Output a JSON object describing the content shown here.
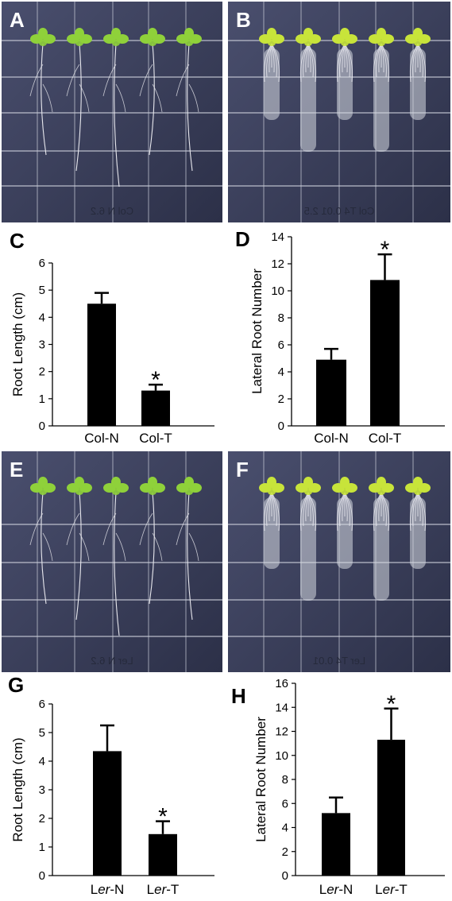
{
  "photos": [
    {
      "letter": "A",
      "plate_text": "Col N  6.2",
      "seedlings": 5
    },
    {
      "letter": "B",
      "plate_text": "Col T4 0.01 2.5",
      "seedlings": 5
    },
    {
      "letter": "E",
      "plate_text": "Ler N  6.2",
      "seedlings": 5
    },
    {
      "letter": "F",
      "plate_text": "Ler T4 0.01",
      "seedlings": 5
    }
  ],
  "colors": {
    "bar": "#000000",
    "axis": "#000000",
    "plate": "#3a3f5c",
    "grid": "#c9ccd8",
    "leaf": "#8fd13a",
    "leaf_yellow": "#c8e43a",
    "root": "#e8e8ee",
    "gel": "#d6d8e0"
  },
  "chart_data": [
    {
      "letter": "C",
      "type": "bar",
      "title": "",
      "xlabel": "",
      "ylabel": "Root  Length (cm)",
      "categories": [
        {
          "name": "Col-N",
          "prefix": "Col",
          "suffix": "-N",
          "italic": false
        },
        {
          "name": "Col-T",
          "prefix": "Col",
          "suffix": "-T",
          "italic": false
        }
      ],
      "values": [
        4.5,
        1.3
      ],
      "errors": [
        0.4,
        0.22
      ],
      "significance": [
        "",
        "*"
      ],
      "ylim": [
        0,
        6
      ],
      "yticks": [
        0,
        1,
        2,
        3,
        4,
        5,
        6
      ],
      "grid": false,
      "legend": "none"
    },
    {
      "letter": "D",
      "type": "bar",
      "title": "",
      "xlabel": "",
      "ylabel": "Lateral Root Number",
      "categories": [
        {
          "name": "Col-N",
          "prefix": "Col",
          "suffix": "-N",
          "italic": false
        },
        {
          "name": "Col-T",
          "prefix": "Col",
          "suffix": "-T",
          "italic": false
        }
      ],
      "values": [
        4.9,
        10.8
      ],
      "errors": [
        0.8,
        1.9
      ],
      "significance": [
        "",
        "*"
      ],
      "ylim": [
        0,
        14
      ],
      "yticks": [
        0,
        2,
        4,
        6,
        8,
        10,
        12,
        14
      ],
      "grid": false,
      "legend": "none"
    },
    {
      "letter": "G",
      "type": "bar",
      "title": "",
      "xlabel": "",
      "ylabel": "Root  Length (cm)",
      "categories": [
        {
          "name": "Ler-N",
          "prefix": "L",
          "italic_part": "er",
          "suffix": "-N",
          "italic": true
        },
        {
          "name": "Ler-T",
          "prefix": "L",
          "italic_part": "er",
          "suffix": "-T",
          "italic": true
        }
      ],
      "values": [
        4.35,
        1.45
      ],
      "errors": [
        0.9,
        0.45
      ],
      "significance": [
        "",
        "*"
      ],
      "ylim": [
        0,
        6
      ],
      "yticks": [
        0,
        1,
        2,
        3,
        4,
        5,
        6
      ],
      "grid": false,
      "legend": "none"
    },
    {
      "letter": "H",
      "type": "bar",
      "title": "",
      "xlabel": "",
      "ylabel": "Lateral Root Number",
      "categories": [
        {
          "name": "Ler-N",
          "prefix": "L",
          "italic_part": "er",
          "suffix": "-N",
          "italic": true
        },
        {
          "name": "Ler-T",
          "prefix": "L",
          "italic_part": "er",
          "suffix": "-T",
          "italic": true
        }
      ],
      "values": [
        5.2,
        11.3
      ],
      "errors": [
        1.3,
        2.6
      ],
      "significance": [
        "",
        "*"
      ],
      "ylim": [
        0,
        16
      ],
      "yticks": [
        0,
        2,
        4,
        6,
        8,
        10,
        12,
        14,
        16
      ],
      "grid": false,
      "legend": "none"
    }
  ]
}
